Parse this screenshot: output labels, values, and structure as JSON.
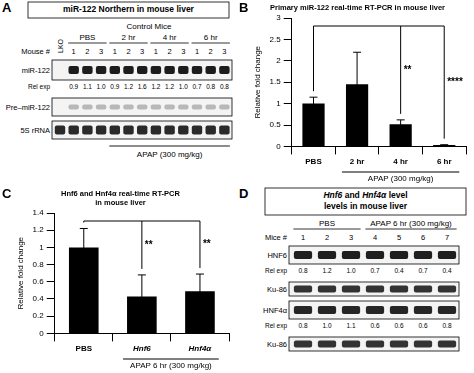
{
  "panel_a": {
    "letter": "A",
    "title": "miR-122 Northern in mouse liver",
    "header": "Control Mice",
    "mouse_label": "Mouse #",
    "lanes_first": "LKO",
    "groups": [
      {
        "name": "PBS",
        "mice": [
          1,
          2,
          3
        ]
      },
      {
        "name": "2 hr",
        "mice": [
          1,
          2,
          3
        ]
      },
      {
        "name": "4 hr",
        "mice": [
          1,
          2,
          3
        ]
      },
      {
        "name": "6 hr",
        "mice": [
          1,
          2,
          3
        ]
      }
    ],
    "rows": [
      {
        "label": "miR-122",
        "rel_label": "Rel exp",
        "rel_values": [
          0.9,
          1.1,
          1.0,
          0.9,
          1.2,
          1.6,
          1.2,
          1.2,
          1.0,
          0.7,
          0.8,
          0.8
        ]
      },
      {
        "label": "Pre–miR-122"
      },
      {
        "label": "5S rRNA"
      }
    ],
    "treatment": {
      "text": "APAP (300 mg/kg)",
      "groups": [
        "2 hr",
        "4 hr",
        "6 hr"
      ]
    }
  },
  "chart_data": [
    {
      "letter": "B",
      "type": "bar",
      "title": "Primary miR-122 real-time RT-PCR in mouse liver",
      "y_label": "Relative fold change",
      "categories": [
        "PBS",
        "2 hr",
        "4 hr",
        "6 hr"
      ],
      "values": [
        1.0,
        1.45,
        0.52,
        0.03
      ],
      "errors": [
        0.15,
        0.75,
        0.1,
        0.01
      ],
      "annotations": [
        null,
        null,
        "**",
        "****"
      ],
      "treatment": {
        "text": "APAP (300 mg/kg)",
        "categories": [
          "2 hr",
          "4 hr",
          "6 hr"
        ]
      },
      "color": "#000000",
      "ylim": [
        0,
        3
      ],
      "yticks": [
        0,
        0.5,
        1,
        1.5,
        2,
        2.5,
        3
      ],
      "grid": false
    },
    {
      "letter": "C",
      "type": "bar",
      "title": [
        "Hnf6 and Hnf4α real-time RT-PCR",
        "in mouse liver"
      ],
      "y_label": "Relative fold change",
      "categories": [
        "PBS",
        "Hnf6",
        "Hnf4α"
      ],
      "values": [
        1.0,
        0.43,
        0.49
      ],
      "errors": [
        0.22,
        0.25,
        0.2
      ],
      "annotations": [
        null,
        "**",
        "**"
      ],
      "treatment": {
        "text": "APAP 6 hr (300 mg/kg)",
        "categories": [
          "Hnf6",
          "Hnf4α"
        ]
      },
      "color": "#000000",
      "ylim": [
        0,
        1.4
      ],
      "yticks": [
        0,
        0.2,
        0.4,
        0.6,
        0.8,
        1,
        1.2,
        1.4
      ],
      "grid": false
    }
  ],
  "panel_d": {
    "letter": "D",
    "title": [
      "Hnf6 and Hnf4α level",
      "levels in mouse liver"
    ],
    "mouse_label": "Mice #",
    "groups": [
      {
        "name": "PBS",
        "mice": [
          1,
          2,
          3
        ]
      },
      {
        "name": "APAP 6 hr (300 mg/kg)",
        "mice": [
          4,
          5,
          6,
          7
        ]
      }
    ],
    "rows": [
      {
        "label": "HNF6",
        "rel_label": "Rel exp",
        "rel_values": [
          0.8,
          1.2,
          1.0,
          0.7,
          0.4,
          0.7,
          0.4
        ]
      },
      {
        "label": "Ku-86"
      },
      {
        "label": "HNF4α",
        "rel_label": "Rel exp",
        "rel_values": [
          0.8,
          1.0,
          1.1,
          0.6,
          0.6,
          0.6,
          0.8
        ]
      },
      {
        "label": "Ku-86"
      }
    ]
  }
}
